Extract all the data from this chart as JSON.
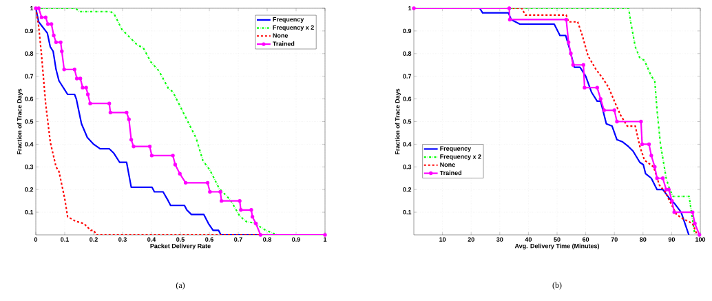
{
  "chart_data": [
    {
      "type": "line",
      "xlabel": "Packet Delivery Rate",
      "ylabel": "Fraction of Trace Days",
      "xlim": [
        0,
        1
      ],
      "ylim": [
        0,
        1
      ],
      "xticks": [
        0,
        0.1,
        0.2,
        0.3,
        0.4,
        0.5,
        0.6,
        0.7,
        0.8,
        0.9,
        1
      ],
      "yticks": [
        0.1,
        0.2,
        0.3,
        0.4,
        0.5,
        0.6,
        0.7,
        0.8,
        0.9,
        1
      ],
      "grid": true,
      "legend": "top right",
      "annotations": [
        "(a)"
      ],
      "series": [
        {
          "name": "Frequency",
          "color": "#0000ff",
          "line_style": "solid",
          "x": [
            0,
            0.01,
            0.04,
            0.05,
            0.06,
            0.07,
            0.08,
            0.1,
            0.11,
            0.134,
            0.14,
            0.158,
            0.178,
            0.2,
            0.222,
            0.254,
            0.27,
            0.29,
            0.314,
            0.33,
            0.402,
            0.41,
            0.44,
            0.458,
            0.466,
            0.514,
            0.522,
            0.538,
            0.581,
            0.597,
            0.613,
            0.632,
            0.64,
            1
          ],
          "values": [
            1,
            0.94,
            0.89,
            0.83,
            0.81,
            0.73,
            0.68,
            0.64,
            0.62,
            0.62,
            0.6,
            0.49,
            0.43,
            0.4,
            0.38,
            0.38,
            0.36,
            0.32,
            0.32,
            0.21,
            0.21,
            0.19,
            0.19,
            0.15,
            0.13,
            0.13,
            0.11,
            0.09,
            0.09,
            0.05,
            0.02,
            0.02,
            0,
            0
          ]
        },
        {
          "name": "Frequency x 2",
          "color": "#00ff00",
          "line_style": "dashdot",
          "x": [
            0,
            0.138,
            0.15,
            0.258,
            0.27,
            0.298,
            0.354,
            0.37,
            0.398,
            0.426,
            0.458,
            0.474,
            0.506,
            0.554,
            0.578,
            0.602,
            0.634,
            0.673,
            0.705,
            0.729,
            0.753,
            0.793,
            0.833,
            1
          ],
          "values": [
            1,
            1,
            0.985,
            0.985,
            0.977,
            0.906,
            0.834,
            0.829,
            0.763,
            0.723,
            0.647,
            0.631,
            0.55,
            0.428,
            0.327,
            0.286,
            0.205,
            0.154,
            0.083,
            0.058,
            0.053,
            0.022,
            0,
            0
          ]
        },
        {
          "name": "None",
          "color": "#ff0000",
          "line_style": "dashed",
          "x": [
            0,
            0.01,
            0.02,
            0.034,
            0.05,
            0.07,
            0.08,
            0.1,
            0.11,
            0.138,
            0.166,
            0.19,
            0.2,
            0.21,
            1
          ],
          "values": [
            1,
            0.92,
            0.79,
            0.58,
            0.41,
            0.3,
            0.28,
            0.16,
            0.08,
            0.06,
            0.05,
            0.02,
            0.02,
            0,
            0
          ]
        },
        {
          "name": "Trained",
          "color": "#ff00ff",
          "line_style": "solid",
          "marker": "circle",
          "x": [
            0,
            0.01,
            0.02,
            0.034,
            0.042,
            0.054,
            0.062,
            0.07,
            0.086,
            0.09,
            0.098,
            0.134,
            0.142,
            0.154,
            0.162,
            0.174,
            0.18,
            0.188,
            0.254,
            0.258,
            0.314,
            0.322,
            0.33,
            0.338,
            0.394,
            0.401,
            0.474,
            0.482,
            0.498,
            0.518,
            0.594,
            0.602,
            0.638,
            0.642,
            0.705,
            0.709,
            0.745,
            0.749,
            0.761,
            0.777,
            1
          ],
          "values": [
            1,
            1,
            0.96,
            0.96,
            0.93,
            0.93,
            0.88,
            0.85,
            0.85,
            0.81,
            0.73,
            0.73,
            0.69,
            0.69,
            0.65,
            0.65,
            0.62,
            0.58,
            0.58,
            0.54,
            0.54,
            0.51,
            0.42,
            0.39,
            0.39,
            0.35,
            0.35,
            0.31,
            0.27,
            0.23,
            0.23,
            0.19,
            0.19,
            0.15,
            0.15,
            0.11,
            0.11,
            0.08,
            0.05,
            0,
            0
          ]
        }
      ]
    },
    {
      "type": "line",
      "xlabel": "Avg. Delivery Time (Minutes)",
      "ylabel": "Fraction of Trace Days",
      "xlim": [
        0,
        100
      ],
      "ylim": [
        0,
        1
      ],
      "xticks": [
        10,
        20,
        30,
        40,
        50,
        60,
        70,
        80,
        90,
        100
      ],
      "yticks": [
        0.1,
        0.2,
        0.3,
        0.4,
        0.5,
        0.6,
        0.7,
        0.8,
        0.9,
        1
      ],
      "grid": true,
      "legend": "bottom left",
      "annotations": [
        "(b)"
      ],
      "series": [
        {
          "name": "Frequency",
          "color": "#0000ff",
          "line_style": "solid",
          "x": [
            0,
            23,
            24,
            33,
            34,
            37,
            49,
            51,
            53,
            54.4,
            56,
            58,
            60,
            62,
            64,
            65.2,
            67.2,
            69.2,
            70.9,
            72.9,
            74.9,
            76.5,
            78.9,
            80.1,
            80.9,
            82.9,
            84.9,
            86.9,
            89.3,
            90.9,
            93.3,
            96
          ],
          "values": [
            1,
            1,
            0.98,
            0.98,
            0.95,
            0.93,
            0.93,
            0.88,
            0.88,
            0.82,
            0.74,
            0.74,
            0.7,
            0.63,
            0.59,
            0.59,
            0.49,
            0.48,
            0.42,
            0.41,
            0.39,
            0.37,
            0.32,
            0.31,
            0.27,
            0.25,
            0.2,
            0.2,
            0.16,
            0.14,
            0.1,
            0
          ]
        },
        {
          "name": "Frequency x 2",
          "color": "#00ff00",
          "line_style": "dashdot",
          "x": [
            0,
            75,
            75.7,
            77.3,
            78.9,
            80.5,
            82.9,
            84.1,
            84.9,
            86.1,
            88.1,
            89.3,
            90.5,
            96.1,
            96.9,
            98.1
          ],
          "values": [
            1,
            1,
            0.94,
            0.83,
            0.78,
            0.77,
            0.7,
            0.68,
            0.55,
            0.4,
            0.25,
            0.2,
            0.17,
            0.17,
            0.1,
            0
          ]
        },
        {
          "name": "None",
          "color": "#ff0000",
          "line_style": "dashed",
          "x": [
            0,
            37.7,
            38.9,
            53.2,
            54,
            57.2,
            58.8,
            60.8,
            63.6,
            66,
            68,
            70,
            72.1,
            74.5,
            77.3,
            78.9,
            80.5,
            83.7,
            85.7,
            87.7,
            90.1,
            91.7,
            94.1,
            97.3,
            98.9
          ],
          "values": [
            1,
            1,
            0.97,
            0.97,
            0.94,
            0.94,
            0.88,
            0.79,
            0.73,
            0.69,
            0.65,
            0.59,
            0.53,
            0.48,
            0.48,
            0.39,
            0.33,
            0.3,
            0.22,
            0.19,
            0.13,
            0.09,
            0.07,
            0.05,
            0
          ]
        },
        {
          "name": "Trained",
          "color": "#ff00ff",
          "line_style": "solid",
          "marker": "circle",
          "x": [
            0,
            33.3,
            33.5,
            53.2,
            54,
            54.8,
            55.6,
            59.2,
            59.6,
            64,
            65.2,
            66.4,
            70,
            70.9,
            79.3,
            79.7,
            82.1,
            82.9,
            84.1,
            84.9,
            86.9,
            88.1,
            89,
            90.1,
            90.9,
            97.3,
            98.1,
            99.7
          ],
          "values": [
            1,
            1,
            0.95,
            0.95,
            0.85,
            0.8,
            0.75,
            0.75,
            0.65,
            0.65,
            0.6,
            0.55,
            0.55,
            0.5,
            0.5,
            0.4,
            0.4,
            0.35,
            0.3,
            0.25,
            0.25,
            0.2,
            0.2,
            0.15,
            0.1,
            0.1,
            0.05,
            0
          ]
        }
      ]
    }
  ]
}
